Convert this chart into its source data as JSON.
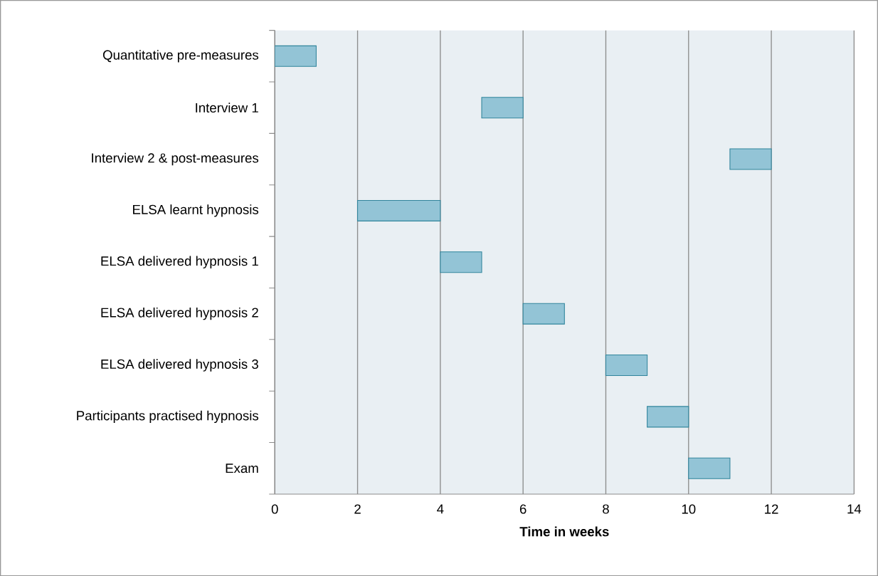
{
  "chart_data": {
    "type": "bar",
    "orientation": "horizontal",
    "categories": [
      "Quantitative pre-measures",
      "Interview 1",
      "Interview 2 & post-measures",
      "ELSA learnt hypnosis",
      "ELSA delivered hypnosis 1",
      "ELSA delivered hypnosis 2",
      "ELSA delivered hypnosis 3",
      "Participants practised hypnosis",
      "Exam"
    ],
    "base": [
      0,
      5,
      11,
      2,
      4,
      6,
      8,
      9,
      10
    ],
    "values": [
      1,
      1,
      1,
      2,
      1,
      1,
      1,
      1,
      1
    ],
    "color": "#93c4d6",
    "xlabel": "Time in weeks",
    "xlim": [
      0,
      14
    ],
    "xticks": [
      0,
      2,
      4,
      6,
      8,
      10,
      12,
      14
    ],
    "grid": "x"
  }
}
